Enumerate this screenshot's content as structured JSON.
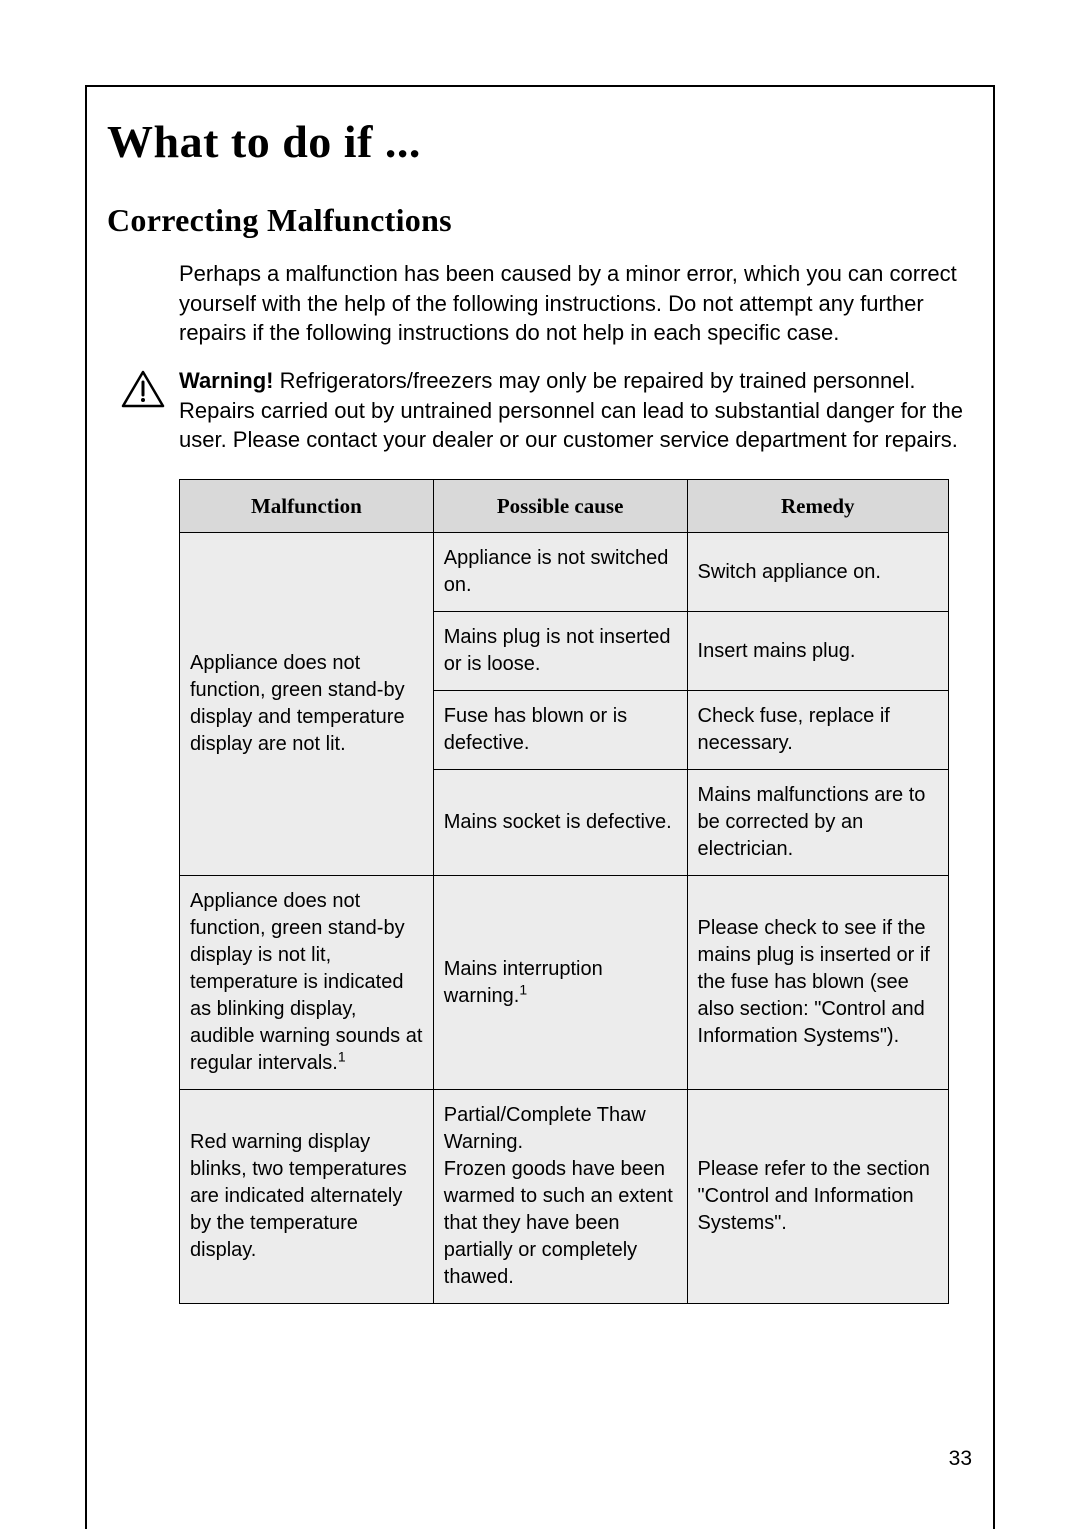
{
  "page": {
    "title": "What to do if ...",
    "subtitle": "Correcting Malfunctions",
    "intro": "Perhaps a malfunction has been caused by a minor error, which you can correct yourself with the help of the following instructions. Do not attempt any further repairs if the following instructions do not help in each specific case.",
    "warning_label": "Warning!",
    "warning_text": "  Refrigerators/freezers may only be repaired by trained personnel. Repairs carried out by untrained personnel can lead to substantial danger for the user. Please contact your dealer or our customer service department for repairs.",
    "page_number": "33"
  },
  "table": {
    "headers": [
      "Malfunction",
      "Possible cause",
      "Remedy"
    ],
    "col_widths": [
      "33%",
      "33%",
      "34%"
    ],
    "header_bg": "#d9d9d9",
    "cell_bg": "#ececec",
    "border_color": "#000000",
    "rows": [
      {
        "malfunction": "Appliance does not function, green stand-by display and temperature display are not lit.",
        "malfunction_rowspan": 4,
        "cause": "Appliance is not switched on.",
        "remedy": "Switch appliance on."
      },
      {
        "cause": "Mains plug is not inserted or is loose.",
        "remedy": "Insert mains plug."
      },
      {
        "cause": "Fuse has blown or is defective.",
        "remedy": "Check fuse, replace if necessary."
      },
      {
        "cause": "Mains socket is defective.",
        "remedy": "Mains malfunctions are to be corrected by an electrician."
      },
      {
        "malfunction_html": "Appliance does not function, green stand-by display is not lit, temperature is indicated as blinking display, audible warning sounds at regular intervals.<sup>1</sup>",
        "cause_html": "Mains interruption warning.<sup>1</sup>",
        "remedy": "Please check to see if the mains plug is inserted or if the fuse has blown (see also section: \"Control and Information Systems\")."
      },
      {
        "malfunction": "Red warning display blinks, two temperatures are indicated alternately by the temperature display.",
        "cause": "Partial/Complete Thaw Warning.\nFrozen goods have been warmed to such an extent that they have been partially or completely thawed.",
        "remedy": "Please refer to the section \"Control and Information Systems\"."
      }
    ]
  },
  "icon": {
    "name": "warning-triangle-icon",
    "stroke": "#000000",
    "fill": "none"
  }
}
